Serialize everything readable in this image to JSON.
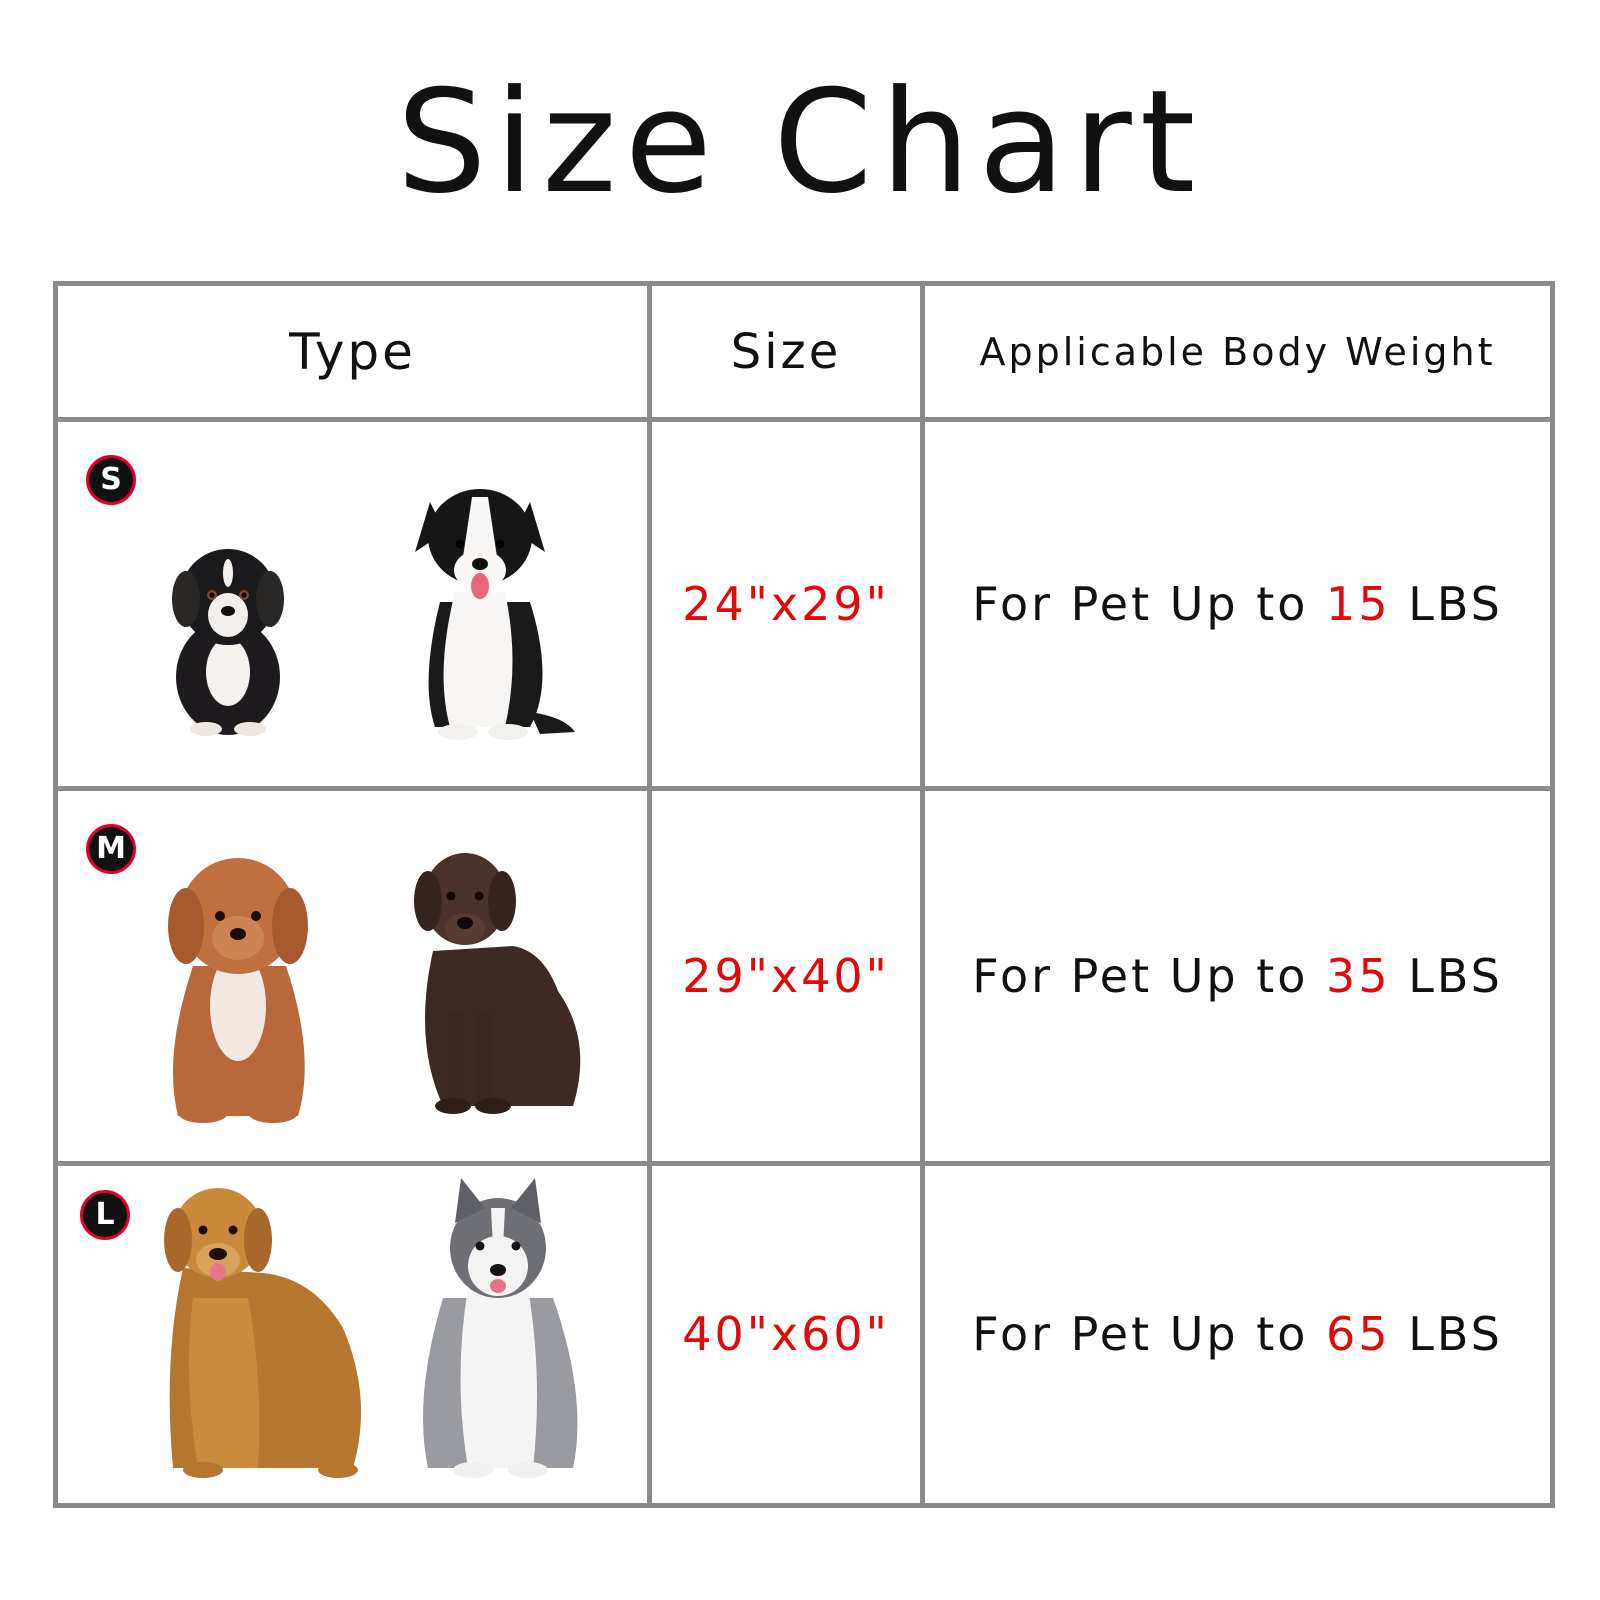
{
  "title": "Size Chart",
  "headers": {
    "type": "Type",
    "size": "Size",
    "weight": "Applicable Body Weight"
  },
  "rows": [
    {
      "badge": "S",
      "size": "24\"x29\"",
      "weight_prefix": "For Pet Up to",
      "weight_value": "15",
      "weight_unit": "LBS",
      "dogs": [
        "bernese-puppy-icon",
        "border-collie-puppy-icon"
      ]
    },
    {
      "badge": "M",
      "size": "29\"x40\"",
      "weight_prefix": "For Pet Up to",
      "weight_value": "35",
      "weight_unit": "LBS",
      "dogs": [
        "goldendoodle-icon",
        "chocolate-labrador-icon"
      ]
    },
    {
      "badge": "L",
      "size": "40\"x60\"",
      "weight_prefix": "For Pet Up to",
      "weight_value": "65",
      "weight_unit": "LBS",
      "dogs": [
        "golden-retriever-icon",
        "husky-icon"
      ]
    }
  ],
  "colors": {
    "accent": "#e00a0a",
    "border": "#8a8a8a",
    "badge_ring": "#e3002b"
  }
}
